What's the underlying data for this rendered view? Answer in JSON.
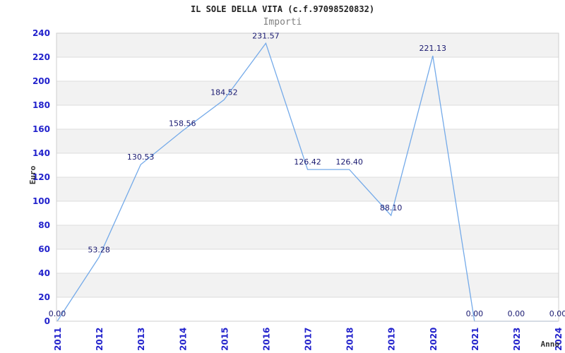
{
  "header": {
    "title": "IL SOLE DELLA VITA (c.f.97098520832)",
    "subtitle": "Importi"
  },
  "chart_data": {
    "type": "line",
    "title": "IL SOLE DELLA VITA (c.f.97098520832)",
    "subtitle": "Importi",
    "xlabel": "Anno",
    "ylabel": "Euro",
    "categories": [
      "2011",
      "2012",
      "2013",
      "2014",
      "2015",
      "2016",
      "2017",
      "2018",
      "2019",
      "2020",
      "2021",
      "2023",
      "2024"
    ],
    "values": [
      0.0,
      53.28,
      130.53,
      158.56,
      184.52,
      231.57,
      126.42,
      126.4,
      88.1,
      221.13,
      0.0,
      0.0,
      0.0
    ],
    "data_labels": [
      "0.00",
      "53.28",
      "130.53",
      "158.56",
      "184.52",
      "231.57",
      "126.42",
      "126.40",
      "88.10",
      "221.13",
      "0.00",
      "0.00",
      "0.00"
    ],
    "ylim": [
      0,
      240
    ],
    "ytick_step": 20,
    "ytick_labels": [
      "0",
      "20",
      "40",
      "60",
      "80",
      "100",
      "120",
      "140",
      "160",
      "180",
      "200",
      "220",
      "240"
    ],
    "grid": true,
    "legend": "none",
    "colors": {
      "line": "#74aae9",
      "tick_label": "#2222cc",
      "data_label": "#191970",
      "band_gray": "#f2f2f2",
      "band_white": "#ffffff",
      "gridline": "#dcdcdc",
      "plot_border": "#cfcfcf",
      "title": "#222222",
      "subtitle": "#808080",
      "axis_title": "#333333"
    }
  }
}
